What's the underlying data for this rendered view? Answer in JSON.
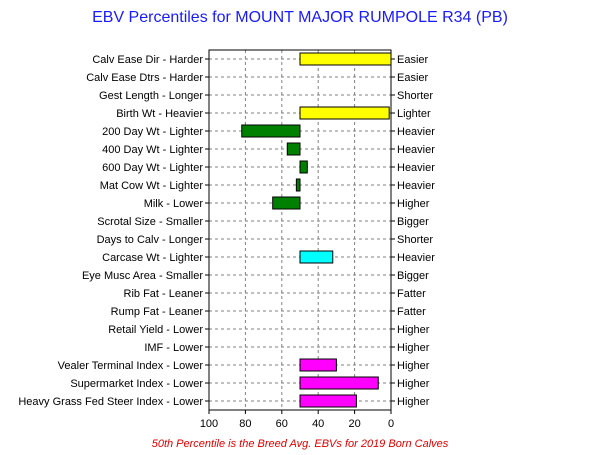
{
  "chart_data": {
    "type": "bar",
    "orientation": "horizontal",
    "title": "EBV Percentiles for MOUNT MAJOR RUMPOLE R34 (PB)",
    "footnote": "50th Percentile is the Breed Avg. EBVs for 2019 Born Calves",
    "xlim": [
      100,
      0
    ],
    "x_ticks": [
      "100",
      "80",
      "60",
      "40",
      "20",
      "0"
    ],
    "grid": true,
    "baseline": 50,
    "traits": [
      {
        "left_label": "Calv Ease Dir - Harder",
        "right_label": "Easier",
        "value": 0,
        "color": "#ffff00"
      },
      {
        "left_label": "Calv Ease Dtrs - Harder",
        "right_label": "Easier",
        "value": null,
        "color": null
      },
      {
        "left_label": "Gest Length - Longer",
        "right_label": "Shorter",
        "value": null,
        "color": null
      },
      {
        "left_label": "Birth Wt - Heavier",
        "right_label": "Lighter",
        "value": 1,
        "color": "#ffff00"
      },
      {
        "left_label": "200 Day Wt - Lighter",
        "right_label": "Heavier",
        "value": 82,
        "color": "#008000"
      },
      {
        "left_label": "400 Day Wt - Lighter",
        "right_label": "Heavier",
        "value": 57,
        "color": "#008000"
      },
      {
        "left_label": "600 Day Wt - Lighter",
        "right_label": "Heavier",
        "value": 46,
        "color": "#008000"
      },
      {
        "left_label": "Mat Cow Wt - Lighter",
        "right_label": "Heavier",
        "value": 52,
        "color": "#008000"
      },
      {
        "left_label": "Milk - Lower",
        "right_label": "Higher",
        "value": 65,
        "color": "#008000"
      },
      {
        "left_label": "Scrotal Size - Smaller",
        "right_label": "Bigger",
        "value": null,
        "color": null
      },
      {
        "left_label": "Days to Calv - Longer",
        "right_label": "Shorter",
        "value": null,
        "color": null
      },
      {
        "left_label": "Carcase Wt - Lighter",
        "right_label": "Heavier",
        "value": 32,
        "color": "#00ffff"
      },
      {
        "left_label": "Eye Musc Area - Smaller",
        "right_label": "Bigger",
        "value": null,
        "color": null
      },
      {
        "left_label": "Rib Fat - Leaner",
        "right_label": "Fatter",
        "value": null,
        "color": null
      },
      {
        "left_label": "Rump Fat - Leaner",
        "right_label": "Fatter",
        "value": null,
        "color": null
      },
      {
        "left_label": "Retail Yield - Lower",
        "right_label": "Higher",
        "value": null,
        "color": null
      },
      {
        "left_label": "IMF - Lower",
        "right_label": "Higher",
        "value": null,
        "color": null
      },
      {
        "left_label": "Vealer Terminal Index - Lower",
        "right_label": "Higher",
        "value": 30,
        "color": "#ff00ff"
      },
      {
        "left_label": "Supermarket Index - Lower",
        "right_label": "Higher",
        "value": 7,
        "color": "#ff00ff"
      },
      {
        "left_label": "Heavy Grass Fed Steer Index - Lower",
        "right_label": "Higher",
        "value": 19,
        "color": "#ff00ff"
      }
    ]
  }
}
